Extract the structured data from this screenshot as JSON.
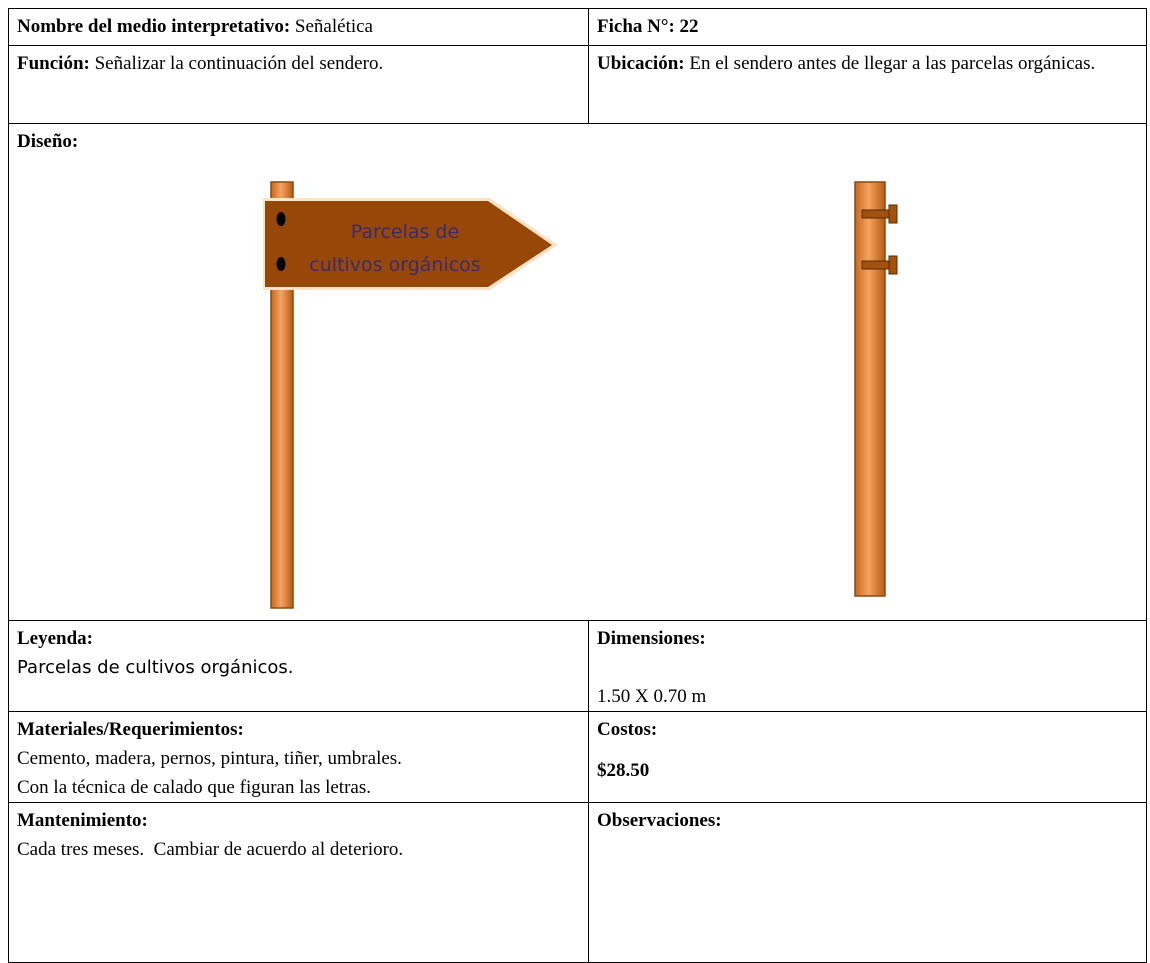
{
  "name": {
    "label": "Nombre del medio interpretativo:",
    "value": "Señalética"
  },
  "ficha": "Ficha N°: 22",
  "funcion": {
    "label": "Función:",
    "value": "Señalizar la continuación del sendero."
  },
  "ubicacion": {
    "label": "Ubicación:",
    "value": "En el sendero antes de llegar a las parcelas orgánicas."
  },
  "diseno": {
    "label": "Diseño:",
    "sign_text": [
      "Parcelas de",
      "cultivos orgánicos"
    ]
  },
  "leyenda": {
    "label": "Leyenda:",
    "value": "Parcelas de cultivos orgánicos."
  },
  "dimensiones": {
    "label": "Dimensiones:",
    "value": "1.50 X 0.70 m"
  },
  "materiales": {
    "label": "Materiales/Requerimientos:",
    "lines": [
      "Cemento, madera, pernos, pintura, tiñer, umbrales.",
      "Con la técnica de calado que figuran las letras."
    ]
  },
  "costos": {
    "label": "Costos:",
    "value": "$28.50"
  },
  "mantenimiento": {
    "label": "Mantenimiento:",
    "value": "Cada tres meses.  Cambiar de acuerdo al deterioro."
  },
  "observaciones": {
    "label": "Observaciones:"
  }
}
